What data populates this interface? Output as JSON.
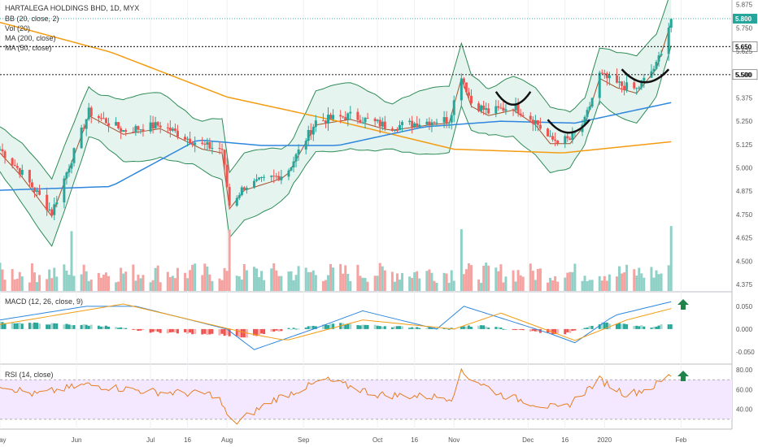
{
  "header": {
    "symbol": "HARTALEGA HOLDINGS BHD, 1D, MYX",
    "indicators": [
      "BB (20, close, 2)",
      "Vol (20)",
      "MA (200, close)",
      "MA (50, close)"
    ],
    "macd_label": "MACD (12, 26, close, 9)",
    "rsi_label": "RSI (14, close)"
  },
  "colors": {
    "up": "#26a69a",
    "down": "#ef5350",
    "bb": "#2e8b57",
    "bb_fill": "#e6f4ef",
    "ma200": "#f39c12",
    "ma50": "#2e86de",
    "basis": "#a0522d",
    "macd": "#2e86de",
    "signal": "#f39c12",
    "rsi": "#e67e22",
    "rsi_band": "#f3e8ff",
    "arrow": "#1e8449",
    "dashed": "#333333",
    "grid": "#eef0f3"
  },
  "icons": [
    "up-arrow-icon"
  ],
  "chart_data": [
    {
      "type": "candlestick",
      "title": "HARTALEGA HOLDINGS BHD, 1D, MYX",
      "xlim": [
        "2019-05-01",
        "2020-02-20"
      ],
      "ylim": [
        4.34,
        5.9
      ],
      "y_ticks": [
        "5.875",
        "5.750",
        "5.625",
        "5.500",
        "5.375",
        "5.250",
        "5.125",
        "5.000",
        "4.875",
        "4.750",
        "4.625",
        "4.500",
        "4.375"
      ],
      "x_ticks": [
        "May",
        "Jun",
        "Jul",
        "16",
        "Aug",
        "Sep",
        "Oct",
        "16",
        "Nov",
        "Dec",
        "16",
        "2020",
        "Feb"
      ],
      "current_price": "5.800",
      "levels": [
        "5.650",
        "5.500"
      ],
      "close_anchors": [
        [
          "2019-05-01",
          5.1
        ],
        [
          "2019-05-10",
          4.97
        ],
        [
          "2019-05-22",
          4.76
        ],
        [
          "2019-06-06",
          5.3
        ],
        [
          "2019-06-20",
          5.2
        ],
        [
          "2019-07-05",
          5.23
        ],
        [
          "2019-07-22",
          5.12
        ],
        [
          "2019-07-30",
          5.1
        ],
        [
          "2019-08-02",
          4.8
        ],
        [
          "2019-08-08",
          4.9
        ],
        [
          "2019-08-25",
          4.97
        ],
        [
          "2019-09-06",
          5.25
        ],
        [
          "2019-09-20",
          5.28
        ],
        [
          "2019-10-06",
          5.22
        ],
        [
          "2019-10-22",
          5.25
        ],
        [
          "2019-10-30",
          5.26
        ],
        [
          "2019-11-04",
          5.5
        ],
        [
          "2019-11-08",
          5.35
        ],
        [
          "2019-11-15",
          5.3
        ],
        [
          "2019-11-25",
          5.33
        ],
        [
          "2019-12-04",
          5.25
        ],
        [
          "2019-12-10",
          5.15
        ],
        [
          "2019-12-18",
          5.15
        ],
        [
          "2019-12-24",
          5.25
        ],
        [
          "2019-12-30",
          5.5
        ],
        [
          "2020-01-06",
          5.45
        ],
        [
          "2020-01-14",
          5.42
        ],
        [
          "2020-01-22",
          5.55
        ],
        [
          "2020-01-28",
          5.8
        ]
      ],
      "bb_width": 0.12,
      "ma200_anchors": [
        [
          "2019-05-01",
          5.78
        ],
        [
          "2019-06-15",
          5.62
        ],
        [
          "2019-08-01",
          5.38
        ],
        [
          "2019-09-15",
          5.25
        ],
        [
          "2019-11-01",
          5.1
        ],
        [
          "2019-12-15",
          5.08
        ],
        [
          "2020-01-28",
          5.14
        ]
      ],
      "ma50_anchors": [
        [
          "2019-05-01",
          4.88
        ],
        [
          "2019-06-15",
          4.9
        ],
        [
          "2019-07-20",
          5.15
        ],
        [
          "2019-08-15",
          5.12
        ],
        [
          "2019-09-15",
          5.12
        ],
        [
          "2019-10-20",
          5.22
        ],
        [
          "2019-11-20",
          5.25
        ],
        [
          "2019-12-20",
          5.24
        ],
        [
          "2020-01-28",
          5.35
        ]
      ]
    },
    {
      "type": "bar",
      "title": "MACD (12, 26, close, 9)",
      "ylim": [
        -0.075,
        0.08
      ],
      "y_ticks": [
        "0.050",
        "0.000",
        "-0.050"
      ],
      "histogram_anchors": [
        [
          "2019-05-01",
          0.015
        ],
        [
          "2019-06-10",
          0.008
        ],
        [
          "2019-07-01",
          -0.006
        ],
        [
          "2019-07-30",
          -0.012
        ],
        [
          "2019-08-08",
          -0.02
        ],
        [
          "2019-08-25",
          0.0
        ],
        [
          "2019-09-15",
          0.012
        ],
        [
          "2019-10-10",
          0.005
        ],
        [
          "2019-11-01",
          0.002
        ],
        [
          "2019-11-10",
          0.008
        ],
        [
          "2019-12-01",
          -0.004
        ],
        [
          "2019-12-15",
          -0.012
        ],
        [
          "2020-01-01",
          0.015
        ],
        [
          "2020-01-20",
          0.005
        ],
        [
          "2020-01-28",
          0.012
        ]
      ],
      "macd_anchors": [
        [
          "2019-05-01",
          0.02
        ],
        [
          "2019-06-05",
          0.05
        ],
        [
          "2019-06-25",
          0.05
        ],
        [
          "2019-08-01",
          0.0
        ],
        [
          "2019-08-12",
          -0.045
        ],
        [
          "2019-09-05",
          0.0
        ],
        [
          "2019-09-25",
          0.04
        ],
        [
          "2019-10-25",
          0.0
        ],
        [
          "2019-11-05",
          0.05
        ],
        [
          "2019-12-10",
          -0.01
        ],
        [
          "2019-12-20",
          -0.03
        ],
        [
          "2020-01-05",
          0.03
        ],
        [
          "2020-01-28",
          0.06
        ]
      ],
      "signal_anchors": [
        [
          "2019-05-01",
          0.01
        ],
        [
          "2019-06-20",
          0.055
        ],
        [
          "2019-08-10",
          -0.01
        ],
        [
          "2019-08-25",
          -0.025
        ],
        [
          "2019-09-25",
          0.02
        ],
        [
          "2019-11-01",
          0.0
        ],
        [
          "2019-11-20",
          0.035
        ],
        [
          "2019-12-20",
          -0.025
        ],
        [
          "2020-01-10",
          0.02
        ],
        [
          "2020-01-28",
          0.045
        ]
      ]
    },
    {
      "type": "line",
      "title": "RSI (14, close)",
      "ylim": [
        20,
        85
      ],
      "y_ticks": [
        "80.00",
        "60.00",
        "40.00"
      ],
      "band": [
        30,
        70
      ],
      "values_anchors": [
        [
          "2019-05-01",
          65
        ],
        [
          "2019-05-15",
          55
        ],
        [
          "2019-06-05",
          65
        ],
        [
          "2019-07-01",
          58
        ],
        [
          "2019-07-28",
          55
        ],
        [
          "2019-08-03",
          24
        ],
        [
          "2019-08-20",
          50
        ],
        [
          "2019-09-10",
          70
        ],
        [
          "2019-10-01",
          55
        ],
        [
          "2019-10-31",
          52
        ],
        [
          "2019-11-04",
          77
        ],
        [
          "2019-11-20",
          55
        ],
        [
          "2019-12-05",
          45
        ],
        [
          "2019-12-15",
          40
        ],
        [
          "2019-12-30",
          70
        ],
        [
          "2020-01-10",
          55
        ],
        [
          "2020-01-20",
          62
        ],
        [
          "2020-01-28",
          75
        ]
      ]
    }
  ]
}
